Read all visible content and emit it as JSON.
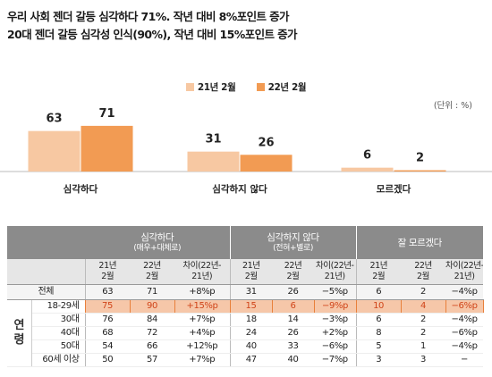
{
  "title_line1": "우리 사회 젠더 갈등 심각하다 71%.  작년 대비 8%포인트 증가",
  "title_line2": "20대 젠더 갈등 심각성 인식(90%), 작년 대비 15%포인트 증가",
  "unit_note": "(단위 : %)",
  "colors": {
    "series_2021": "#f7c8a2",
    "series_2022": "#f29b53",
    "table_header": "#8b8b8b",
    "highlight": "#e8803b"
  },
  "chart_data": {
    "type": "bar",
    "categories": [
      "심각하다",
      "심각하지 않다",
      "모르겠다"
    ],
    "series": [
      {
        "name": "21년 2월",
        "values": [
          63,
          31,
          6
        ]
      },
      {
        "name": "22년 2월",
        "values": [
          71,
          26,
          2
        ]
      }
    ],
    "ylim": [
      0,
      100
    ],
    "grid": false,
    "legend": "top-center"
  },
  "table": {
    "groups": [
      {
        "label": "심각하다",
        "sub": "(매우+대체로)"
      },
      {
        "label": "심각하지 않다",
        "sub": "(전혀+별로)"
      },
      {
        "label": "잘 모르겠다",
        "sub": ""
      }
    ],
    "col_headers": [
      [
        "21년",
        "2월"
      ],
      [
        "22년",
        "2월"
      ],
      [
        "차이(22년-",
        "21년)"
      ],
      [
        "21년",
        "2월"
      ],
      [
        "22년",
        "2월"
      ],
      [
        "차이(22년-",
        "21년)"
      ],
      [
        "21년",
        "2월"
      ],
      [
        "22년",
        "2월"
      ],
      [
        "차이(22년-",
        "21년)"
      ]
    ],
    "total_row": {
      "label": "전체",
      "values": [
        "63",
        "71",
        "+8%p",
        "31",
        "26",
        "−5%p",
        "6",
        "2",
        "−4%p"
      ]
    },
    "age_group_label": "연령",
    "rows": [
      {
        "label": "18-29세",
        "values": [
          "75",
          "90",
          "+15%p",
          "15",
          "6",
          "−9%p",
          "10",
          "4",
          "−6%p"
        ],
        "highlight": true
      },
      {
        "label": "30대",
        "values": [
          "76",
          "84",
          "+7%p",
          "18",
          "14",
          "−3%p",
          "6",
          "2",
          "−4%p"
        ],
        "highlight": false
      },
      {
        "label": "40대",
        "values": [
          "68",
          "72",
          "+4%p",
          "24",
          "26",
          "+2%p",
          "8",
          "2",
          "−6%p"
        ],
        "highlight": false
      },
      {
        "label": "50대",
        "values": [
          "54",
          "66",
          "+12%p",
          "40",
          "33",
          "−6%p",
          "5",
          "1",
          "−4%p"
        ],
        "highlight": false
      },
      {
        "label": "60세 이상",
        "values": [
          "50",
          "57",
          "+7%p",
          "47",
          "40",
          "−7%p",
          "3",
          "3",
          "−"
        ],
        "highlight": false
      }
    ]
  }
}
